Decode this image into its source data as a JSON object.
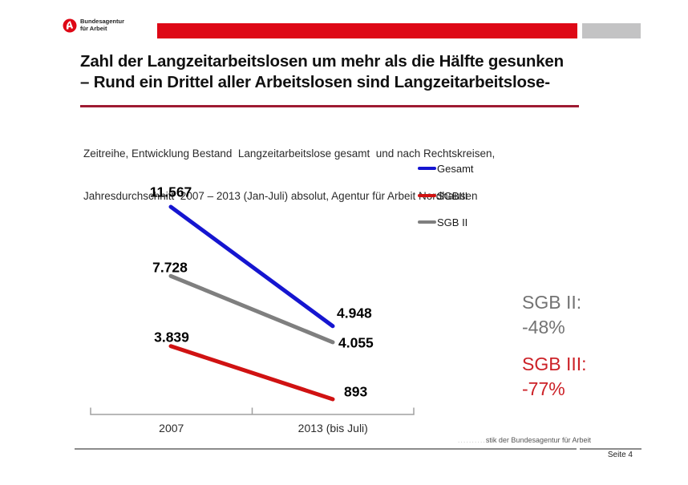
{
  "header": {
    "logo": {
      "line1": "Bundesagentur",
      "line2": "für Arbeit"
    },
    "bar_red_color": "#DE0816",
    "bar_gray_color": "#C3C3C4"
  },
  "title": {
    "line1": "Zahl der Langzeitarbeitslosen um mehr als die Hälfte gesunken",
    "line2": "– Rund ein Drittel aller Arbeitslosen sind Langzeitarbeitslose-",
    "underline_color": "#9E1B32"
  },
  "subtitle": {
    "line1": "Zeitreihe, Entwicklung Bestand  Langzeitarbeitslose gesamt  und nach Rechtskreisen,",
    "line2": "Jahresdurchschnitt  2007 – 2013 (Jan-Juli) absolut, Agentur für Arbeit Nordhausen"
  },
  "chart_data": {
    "type": "line",
    "categories": [
      "2007",
      "2013 (bis Juli)"
    ],
    "series": [
      {
        "name": "Gesamt",
        "color": "#1515D0",
        "values": [
          11567,
          4948
        ],
        "point_labels": [
          "11.567",
          "4.948"
        ]
      },
      {
        "name": "SGBIII",
        "color": "#D01212",
        "values": [
          3839,
          893
        ],
        "point_labels": [
          "3.839",
          "893"
        ]
      },
      {
        "name": "SGB II",
        "color": "#7F7F7F",
        "values": [
          7728,
          4055
        ],
        "point_labels": [
          "7.728",
          "4.055"
        ]
      }
    ],
    "legend_entries": [
      "Gesamt",
      "SGBIII",
      "SGB II"
    ],
    "legend_position": "top-right",
    "grid": false,
    "axis": {
      "color": "#A0A0A0"
    },
    "ylim": [
      0,
      12000
    ],
    "annotations": [
      {
        "label": "SGB II:",
        "value": "-48%",
        "color": "#737373"
      },
      {
        "label": "SGB III:",
        "value": "-77%",
        "color": "#CC2127"
      }
    ]
  },
  "footer": {
    "source_prefix": "..........",
    "source_text": "stik der Bundesagentur für Arbeit",
    "page_label": "Seite 4"
  }
}
